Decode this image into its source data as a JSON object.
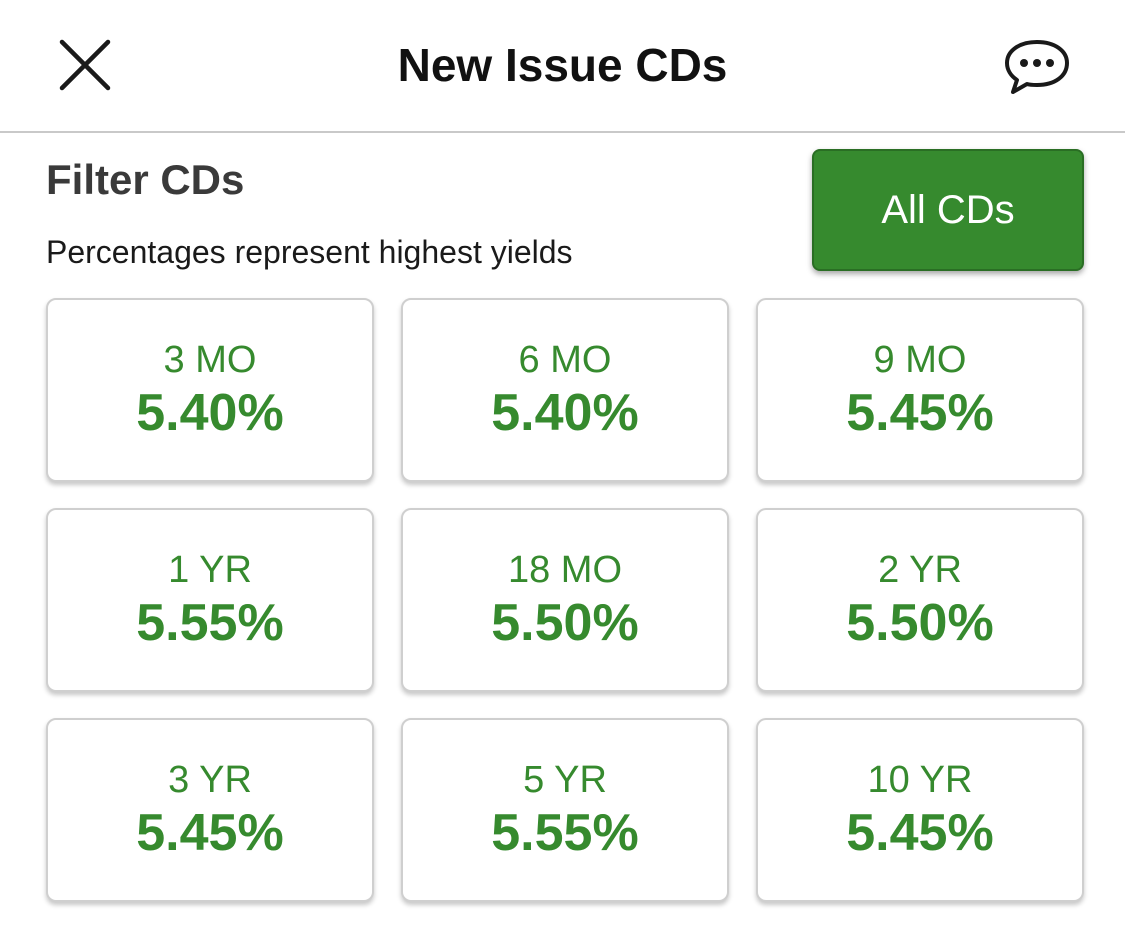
{
  "header": {
    "title": "New Issue CDs",
    "close_icon": "close-icon",
    "chat_icon": "chat-bubble-icon"
  },
  "filter": {
    "title": "Filter CDs",
    "subtitle": "Percentages represent highest yields",
    "all_button_label": "All CDs"
  },
  "colors": {
    "accent": "#368a2e",
    "tile_border": "#cfcfcf",
    "divider": "#c9c9c9"
  },
  "tiles": [
    {
      "term": "3 MO",
      "rate": "5.40%"
    },
    {
      "term": "6 MO",
      "rate": "5.40%"
    },
    {
      "term": "9 MO",
      "rate": "5.45%"
    },
    {
      "term": "1 YR",
      "rate": "5.55%"
    },
    {
      "term": "18 MO",
      "rate": "5.50%"
    },
    {
      "term": "2 YR",
      "rate": "5.50%"
    },
    {
      "term": "3 YR",
      "rate": "5.45%"
    },
    {
      "term": "5 YR",
      "rate": "5.55%"
    },
    {
      "term": "10 YR",
      "rate": "5.45%"
    }
  ]
}
